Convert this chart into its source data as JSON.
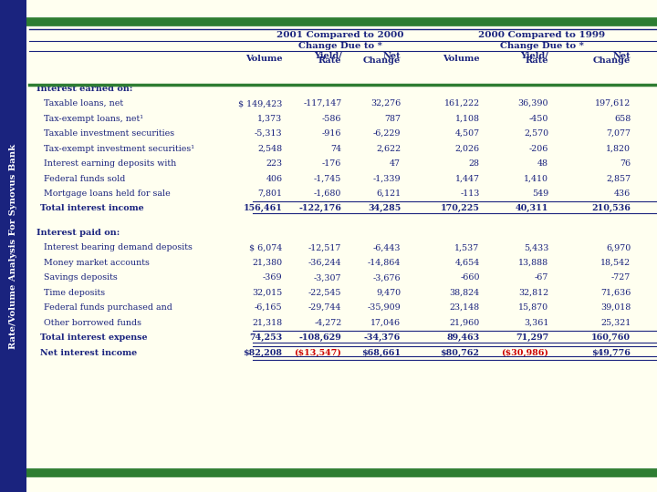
{
  "title_side": "Rate/Volume Analysis For Synovus Bank",
  "header1_left": "2001 Compared to 2000",
  "header1_right": "2000 Compared to 1999",
  "header2": "Change Due to *",
  "section1_title": "Interest earned on:",
  "section1_rows": [
    [
      "Taxable loans, net",
      "$ 149,423",
      "-117,147",
      "32,276",
      "161,222",
      "36,390",
      "197,612"
    ],
    [
      "Tax-exempt loans, net¹",
      "1,373",
      "-586",
      "787",
      "1,108",
      "-450",
      "658"
    ],
    [
      "Taxable investment securities",
      "-5,313",
      "-916",
      "-6,229",
      "4,507",
      "2,570",
      "7,077"
    ],
    [
      "Tax-exempt investment securities¹",
      "2,548",
      "74",
      "2,622",
      "2,026",
      "-206",
      "1,820"
    ],
    [
      "Interest earning deposits with",
      "223",
      "-176",
      "47",
      "28",
      "48",
      "76"
    ],
    [
      "Federal funds sold",
      "406",
      "-1,745",
      "-1,339",
      "1,447",
      "1,410",
      "2,857"
    ],
    [
      "Mortgage loans held for sale",
      "7,801",
      "-1,680",
      "6,121",
      "-113",
      "549",
      "436"
    ],
    [
      "Total interest income",
      "156,461",
      "-122,176",
      "34,285",
      "170,225",
      "40,311",
      "210,536"
    ]
  ],
  "section2_title": "Interest paid on:",
  "section2_rows": [
    [
      "Interest bearing demand deposits",
      "$ 6,074",
      "-12,517",
      "-6,443",
      "1,537",
      "5,433",
      "6,970"
    ],
    [
      "Money market accounts",
      "21,380",
      "-36,244",
      "-14,864",
      "4,654",
      "13,888",
      "18,542"
    ],
    [
      "Savings deposits",
      "-369",
      "-3,307",
      "-3,676",
      "-660",
      "-67",
      "-727"
    ],
    [
      "Time deposits",
      "32,015",
      "-22,545",
      "9,470",
      "38,824",
      "32,812",
      "71,636"
    ],
    [
      "Federal funds purchased and",
      "-6,165",
      "-29,744",
      "-35,909",
      "23,148",
      "15,870",
      "39,018"
    ],
    [
      "Other borrowed funds",
      "21,318",
      "-4,272",
      "17,046",
      "21,960",
      "3,361",
      "25,321"
    ],
    [
      "Total interest expense",
      "74,253",
      "-108,629",
      "-34,376",
      "89,463",
      "71,297",
      "160,760"
    ],
    [
      "Net interest income",
      "$82,208",
      "($13,547)",
      "$68,661",
      "$80,762",
      "($30,986)",
      "$49,776"
    ]
  ],
  "sidebar_color": "#1a237e",
  "bg_color": "#fffff0",
  "green_bar_color": "#2e7d32",
  "dark_blue": "#1a237e",
  "red_color": "#cc0000"
}
